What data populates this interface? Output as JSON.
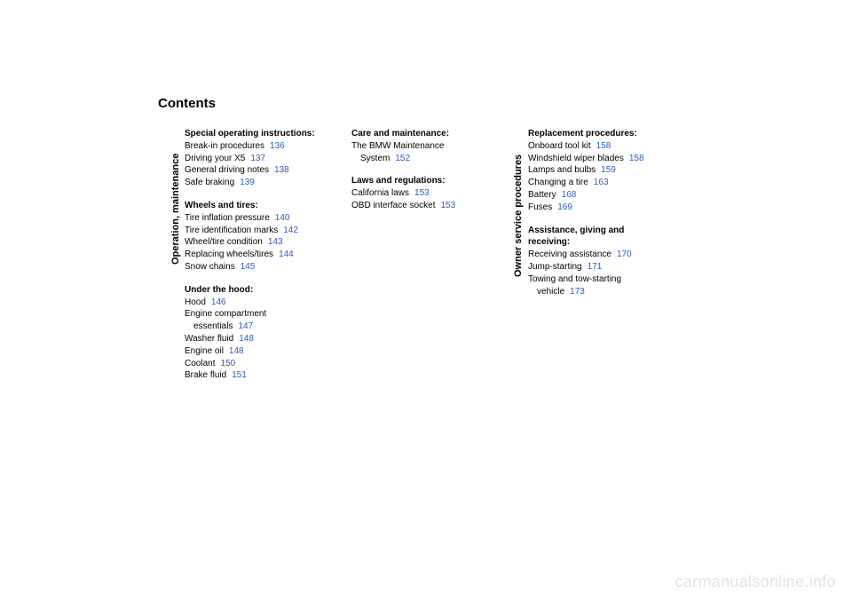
{
  "title": "Contents",
  "sideLabels": {
    "col1": "Operation, maintenance",
    "col3": "Owner service procedures"
  },
  "watermark": "carmanualsonline.info",
  "linkColor": "#2b5bbd",
  "columns": {
    "col1": {
      "sec1": {
        "head": "Special operating instructions:",
        "e1": {
          "t": "Break-in procedures",
          "p": "136"
        },
        "e2": {
          "t": "Driving your X5",
          "p": "137"
        },
        "e3": {
          "t": "General driving notes",
          "p": "138"
        },
        "e4": {
          "t": "Safe braking",
          "p": "139"
        }
      },
      "sec2": {
        "head": "Wheels and tires:",
        "e1": {
          "t": "Tire inflation pressure",
          "p": "140"
        },
        "e2": {
          "t": "Tire identification marks",
          "p": "142"
        },
        "e3": {
          "t": "Wheel/tire condition",
          "p": "143"
        },
        "e4": {
          "t": "Replacing wheels/tires",
          "p": "144"
        },
        "e5": {
          "t": "Snow chains",
          "p": "145"
        }
      },
      "sec3": {
        "head": "Under the hood:",
        "e1": {
          "t": "Hood",
          "p": "146"
        },
        "e2a": {
          "t": "Engine compartment"
        },
        "e2b": {
          "t": "essentials",
          "p": "147"
        },
        "e3": {
          "t": "Washer fluid",
          "p": "148"
        },
        "e4": {
          "t": "Engine oil",
          "p": "148"
        },
        "e5": {
          "t": "Coolant",
          "p": "150"
        },
        "e6": {
          "t": "Brake fluid",
          "p": "151"
        }
      }
    },
    "col2": {
      "sec1": {
        "head": "Care and maintenance:",
        "e1a": {
          "t": "The BMW Maintenance"
        },
        "e1b": {
          "t": "System",
          "p": "152"
        }
      },
      "sec2": {
        "head": "Laws and regulations:",
        "e1": {
          "t": "California laws",
          "p": "153"
        },
        "e2": {
          "t": "OBD interface socket",
          "p": "153"
        }
      }
    },
    "col3": {
      "sec1": {
        "head": "Replacement procedures:",
        "e1": {
          "t": "Onboard tool kit",
          "p": "158"
        },
        "e2": {
          "t": "Windshield wiper blades",
          "p": "158"
        },
        "e3": {
          "t": "Lamps and bulbs",
          "p": "159"
        },
        "e4": {
          "t": "Changing a tire",
          "p": "163"
        },
        "e5": {
          "t": "Battery",
          "p": "168"
        },
        "e6": {
          "t": "Fuses",
          "p": "169"
        }
      },
      "sec2": {
        "head1": "Assistance, giving and",
        "head2": "receiving:",
        "e1": {
          "t": "Receiving assistance",
          "p": "170"
        },
        "e2": {
          "t": "Jump-starting",
          "p": "171"
        },
        "e3a": {
          "t": "Towing and tow-starting"
        },
        "e3b": {
          "t": "vehicle",
          "p": "173"
        }
      }
    }
  }
}
